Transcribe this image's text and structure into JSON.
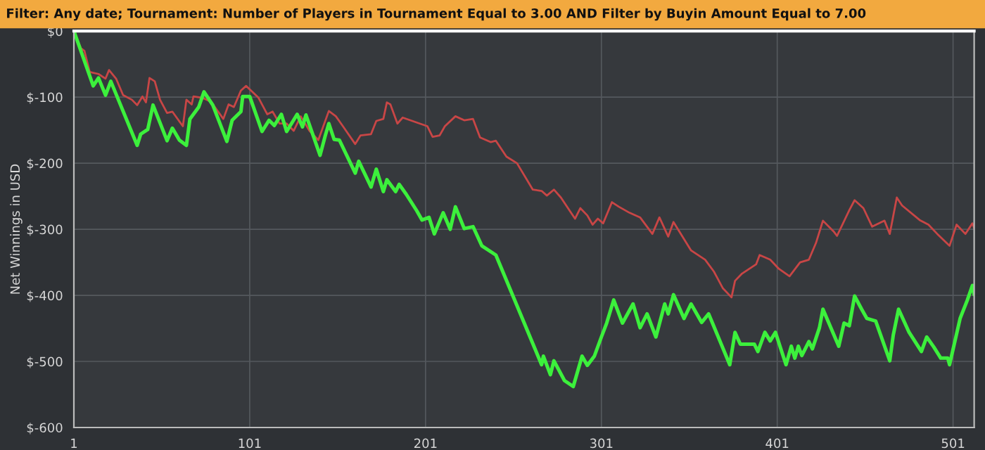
{
  "chart_data": {
    "type": "line",
    "title": "Filter: Any date; Tournament: Number of Players in Tournament Equal to 3.00 AND Filter by Buyin Amount Equal to 7.00",
    "ylabel": "Net Winnings in USD",
    "series": [
      {
        "color": "#c84646",
        "x": [
          1,
          5,
          7,
          10,
          15,
          19,
          21,
          25,
          29,
          34,
          37,
          40,
          42,
          44,
          47,
          50,
          54,
          57,
          63,
          65,
          68,
          69,
          74,
          79,
          86,
          89,
          92,
          96,
          99,
          106,
          111,
          114,
          118,
          122,
          126,
          130,
          135,
          140,
          146,
          150,
          154,
          161,
          164,
          170,
          173,
          177,
          179,
          181,
          185,
          188,
          202,
          205,
          209,
          212,
          218,
          223,
          228,
          232,
          238,
          241,
          247,
          253,
          262,
          267,
          270,
          274,
          278,
          286,
          289,
          293,
          296,
          299,
          302,
          307,
          311,
          317,
          323,
          330,
          334,
          339,
          342,
          352,
          360,
          365,
          370,
          375,
          377,
          381,
          389,
          391,
          397,
          402,
          408,
          414,
          419,
          423,
          427,
          433,
          435,
          442,
          445,
          450,
          455,
          462,
          465,
          469,
          472,
          482,
          487,
          492,
          499,
          503,
          508,
          512,
          513
        ],
        "values": [
          0,
          -26,
          -30,
          -62,
          -65,
          -72,
          -59,
          -72,
          -97,
          -104,
          -112,
          -99,
          -108,
          -71,
          -76,
          -104,
          -124,
          -122,
          -144,
          -104,
          -111,
          -99,
          -101,
          -107,
          -133,
          -111,
          -115,
          -90,
          -83,
          -101,
          -126,
          -122,
          -140,
          -140,
          -151,
          -129,
          -151,
          -165,
          -121,
          -129,
          -144,
          -171,
          -158,
          -156,
          -136,
          -133,
          -108,
          -111,
          -140,
          -131,
          -144,
          -160,
          -158,
          -144,
          -129,
          -135,
          -133,
          -161,
          -168,
          -166,
          -190,
          -200,
          -240,
          -242,
          -249,
          -240,
          -252,
          -284,
          -268,
          -279,
          -293,
          -284,
          -291,
          -259,
          -266,
          -275,
          -282,
          -307,
          -282,
          -311,
          -289,
          -332,
          -346,
          -364,
          -389,
          -403,
          -378,
          -367,
          -353,
          -339,
          -346,
          -360,
          -371,
          -350,
          -346,
          -321,
          -287,
          -303,
          -310,
          -271,
          -256,
          -268,
          -296,
          -287,
          -307,
          -252,
          -264,
          -286,
          -293,
          -307,
          -325,
          -293,
          -307,
          -291,
          -298
        ]
      },
      {
        "color": "#3cf03c",
        "x": [
          1,
          12,
          15,
          19,
          22,
          37,
          39,
          43,
          46,
          54,
          57,
          61,
          65,
          67,
          72,
          75,
          80,
          88,
          91,
          96,
          97,
          101,
          108,
          112,
          115,
          119,
          122,
          128,
          131,
          133,
          141,
          144,
          146,
          149,
          152,
          161,
          163,
          170,
          173,
          177,
          179,
          184,
          186,
          190,
          196,
          199,
          203,
          206,
          211,
          215,
          218,
          223,
          228,
          233,
          241,
          267,
          268,
          272,
          274,
          280,
          285,
          290,
          293,
          297,
          301,
          304,
          308,
          313,
          319,
          323,
          327,
          332,
          337,
          339,
          342,
          348,
          352,
          358,
          362,
          374,
          377,
          380,
          388,
          390,
          394,
          397,
          400,
          406,
          409,
          411,
          413,
          415,
          419,
          421,
          425,
          427,
          436,
          439,
          442,
          445,
          449,
          452,
          457,
          465,
          467,
          470,
          476,
          483,
          486,
          490,
          494,
          498,
          499,
          502,
          505,
          509,
          512,
          513
        ],
        "values": [
          0,
          -83,
          -71,
          -97,
          -76,
          -173,
          -156,
          -149,
          -112,
          -166,
          -147,
          -165,
          -173,
          -133,
          -115,
          -92,
          -112,
          -167,
          -135,
          -122,
          -99,
          -99,
          -152,
          -135,
          -143,
          -126,
          -152,
          -126,
          -145,
          -127,
          -188,
          -158,
          -140,
          -164,
          -165,
          -215,
          -197,
          -236,
          -209,
          -243,
          -225,
          -243,
          -232,
          -247,
          -272,
          -286,
          -282,
          -307,
          -275,
          -300,
          -266,
          -299,
          -296,
          -325,
          -339,
          -505,
          -492,
          -520,
          -499,
          -529,
          -538,
          -492,
          -506,
          -492,
          -463,
          -442,
          -407,
          -442,
          -413,
          -449,
          -428,
          -463,
          -413,
          -428,
          -399,
          -435,
          -413,
          -441,
          -428,
          -505,
          -456,
          -474,
          -474,
          -485,
          -456,
          -469,
          -456,
          -505,
          -477,
          -495,
          -477,
          -491,
          -470,
          -481,
          -449,
          -421,
          -477,
          -442,
          -446,
          -401,
          -421,
          -435,
          -439,
          -499,
          -460,
          -421,
          -456,
          -485,
          -463,
          -478,
          -495,
          -495,
          -505,
          -470,
          -435,
          -408,
          -385,
          -399
        ]
      }
    ],
    "xlim": [
      1,
      513
    ],
    "xticks": [
      1,
      101,
      201,
      301,
      401,
      501
    ],
    "ylim": [
      -600,
      0
    ],
    "yticks": [
      {
        "value": 0,
        "label": "$0"
      },
      {
        "value": -100,
        "label": "$-100"
      },
      {
        "value": -200,
        "label": "$-200"
      },
      {
        "value": -300,
        "label": "$-300"
      },
      {
        "value": -400,
        "label": "$-400"
      },
      {
        "value": -500,
        "label": "$-500"
      },
      {
        "value": -600,
        "label": "$-600"
      }
    ],
    "grid": true,
    "line_style": "solid",
    "marker": "none"
  }
}
